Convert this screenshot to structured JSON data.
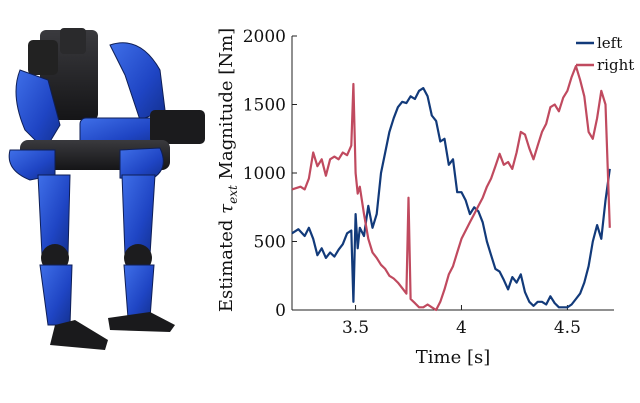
{
  "figure": {
    "image_alt": "blue humanoid exoskeleton robot"
  },
  "chart_data": {
    "type": "line",
    "title": "",
    "xlabel": "Time [s]",
    "ylabel": "Estimated τext Magnitude [Nm]",
    "ylabel_parts": {
      "prefix": "Estimated ",
      "symbol": "τ",
      "subscript": "ext",
      "suffix": " Magnitude [Nm]"
    },
    "xlim": [
      3.2,
      4.72
    ],
    "ylim": [
      0,
      2000
    ],
    "xticks": [
      3.5,
      4,
      4.5
    ],
    "yticks": [
      0,
      500,
      1000,
      1500,
      2000
    ],
    "legend_position": "top-right",
    "colors": {
      "left": "#123a7a",
      "right": "#c04a5f"
    },
    "series": [
      {
        "name": "left",
        "x": [
          3.2,
          3.23,
          3.26,
          3.28,
          3.3,
          3.32,
          3.34,
          3.36,
          3.38,
          3.4,
          3.42,
          3.44,
          3.46,
          3.48,
          3.49,
          3.5,
          3.51,
          3.52,
          3.54,
          3.55,
          3.56,
          3.58,
          3.6,
          3.62,
          3.64,
          3.66,
          3.68,
          3.7,
          3.72,
          3.74,
          3.76,
          3.78,
          3.8,
          3.82,
          3.84,
          3.86,
          3.88,
          3.9,
          3.92,
          3.94,
          3.96,
          3.98,
          4.0,
          4.02,
          4.04,
          4.06,
          4.08,
          4.1,
          4.12,
          4.14,
          4.16,
          4.18,
          4.2,
          4.22,
          4.24,
          4.26,
          4.28,
          4.3,
          4.32,
          4.34,
          4.36,
          4.38,
          4.4,
          4.42,
          4.44,
          4.46,
          4.48,
          4.5,
          4.52,
          4.54,
          4.56,
          4.58,
          4.6,
          4.62,
          4.64,
          4.66,
          4.68,
          4.7
        ],
        "values": [
          560,
          590,
          540,
          600,
          520,
          400,
          450,
          380,
          420,
          390,
          440,
          480,
          560,
          580,
          60,
          700,
          450,
          600,
          540,
          650,
          760,
          600,
          700,
          1000,
          1150,
          1300,
          1400,
          1480,
          1520,
          1510,
          1560,
          1540,
          1600,
          1620,
          1560,
          1420,
          1380,
          1230,
          1250,
          1060,
          1100,
          860,
          860,
          800,
          700,
          750,
          720,
          640,
          500,
          400,
          300,
          280,
          220,
          150,
          240,
          200,
          260,
          130,
          60,
          30,
          60,
          60,
          40,
          100,
          50,
          20,
          20,
          20,
          40,
          80,
          120,
          200,
          320,
          500,
          620,
          520,
          800,
          1030
        ]
      },
      {
        "name": "right",
        "x": [
          3.2,
          3.24,
          3.26,
          3.28,
          3.3,
          3.32,
          3.34,
          3.36,
          3.38,
          3.4,
          3.42,
          3.44,
          3.46,
          3.48,
          3.49,
          3.5,
          3.51,
          3.52,
          3.54,
          3.56,
          3.58,
          3.6,
          3.62,
          3.64,
          3.66,
          3.68,
          3.7,
          3.72,
          3.74,
          3.75,
          3.76,
          3.78,
          3.8,
          3.82,
          3.84,
          3.86,
          3.88,
          3.9,
          3.92,
          3.94,
          3.96,
          3.98,
          4.0,
          4.02,
          4.04,
          4.06,
          4.08,
          4.1,
          4.12,
          4.14,
          4.16,
          4.18,
          4.2,
          4.22,
          4.24,
          4.26,
          4.28,
          4.3,
          4.32,
          4.34,
          4.36,
          4.38,
          4.4,
          4.42,
          4.44,
          4.46,
          4.48,
          4.5,
          4.52,
          4.54,
          4.56,
          4.58,
          4.6,
          4.62,
          4.64,
          4.66,
          4.68,
          4.7
        ],
        "values": [
          880,
          900,
          880,
          960,
          1150,
          1050,
          1100,
          980,
          1100,
          1120,
          1100,
          1150,
          1130,
          1200,
          1650,
          1000,
          850,
          900,
          700,
          520,
          420,
          380,
          330,
          300,
          250,
          230,
          200,
          160,
          120,
          820,
          80,
          50,
          20,
          20,
          40,
          20,
          0,
          60,
          150,
          260,
          320,
          420,
          520,
          580,
          640,
          700,
          760,
          820,
          900,
          960,
          1050,
          1140,
          1060,
          1080,
          1030,
          1150,
          1300,
          1280,
          1180,
          1100,
          1200,
          1300,
          1360,
          1480,
          1500,
          1450,
          1550,
          1600,
          1700,
          1780,
          1680,
          1560,
          1300,
          1250,
          1400,
          1600,
          1500,
          600
        ]
      }
    ]
  }
}
